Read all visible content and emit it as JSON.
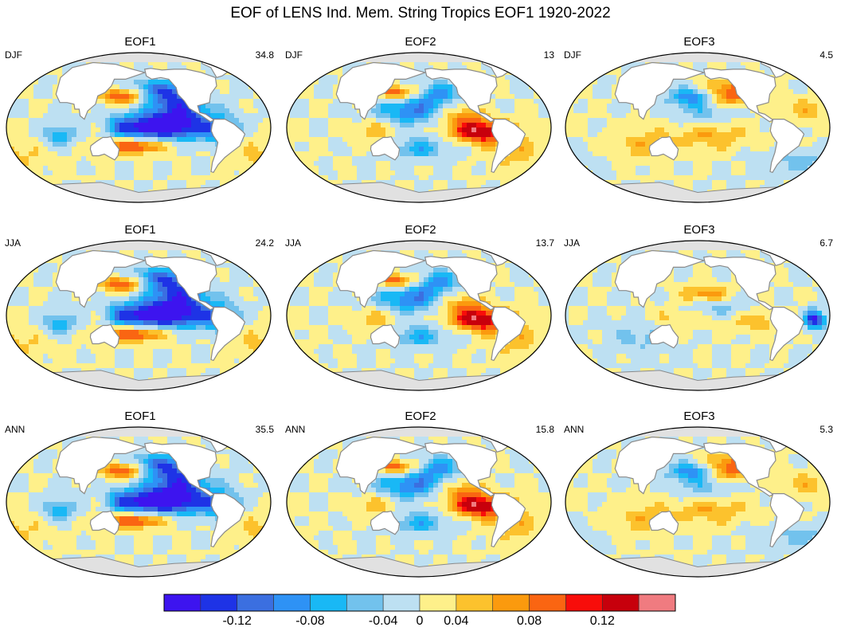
{
  "chart_data": {
    "type": "heatmap",
    "title": "EOF of LENS Ind. Mem. String Tropics EOF1 1920-2022",
    "colorbar": {
      "levels": [
        -0.14,
        -0.12,
        -0.1,
        -0.08,
        -0.06,
        -0.04,
        -0.02,
        0.02,
        0.04,
        0.06,
        0.08,
        0.1,
        0.12,
        0.14
      ],
      "colors": [
        "#3d14ef",
        "#1e33e6",
        "#3b6fe0",
        "#2e92f5",
        "#19b8f5",
        "#72c2ed",
        "#bde0f2",
        "#fef08a",
        "#fcc22d",
        "#fb9a0e",
        "#fa6512",
        "#f80d0a",
        "#c7000c",
        "#f07b80"
      ],
      "tick_values": [
        -0.12,
        -0.08,
        -0.04,
        0,
        0.04,
        0.08,
        0.12
      ],
      "tick_labels": [
        "-0.12",
        "-0.08",
        "-0.04",
        "0",
        "0.04",
        "0.08",
        "0.12"
      ]
    },
    "panels": [
      {
        "eof": "EOF1",
        "season": "DJF",
        "variance": "34.8",
        "pattern": "pos"
      },
      {
        "eof": "EOF2",
        "season": "DJF",
        "variance": "13",
        "pattern": "east_warm"
      },
      {
        "eof": "EOF3",
        "season": "DJF",
        "variance": "4.5",
        "pattern": "npac"
      },
      {
        "eof": "EOF1",
        "season": "JJA",
        "variance": "24.2",
        "pattern": "pos"
      },
      {
        "eof": "EOF2",
        "season": "JJA",
        "variance": "13.7",
        "pattern": "east_warm"
      },
      {
        "eof": "EOF3",
        "season": "JJA",
        "variance": "6.7",
        "pattern": "weak"
      },
      {
        "eof": "EOF1",
        "season": "ANN",
        "variance": "35.5",
        "pattern": "pos"
      },
      {
        "eof": "EOF2",
        "season": "ANN",
        "variance": "15.8",
        "pattern": "east_warm"
      },
      {
        "eof": "EOF3",
        "season": "ANN",
        "variance": "5.3",
        "pattern": "npac"
      }
    ]
  }
}
